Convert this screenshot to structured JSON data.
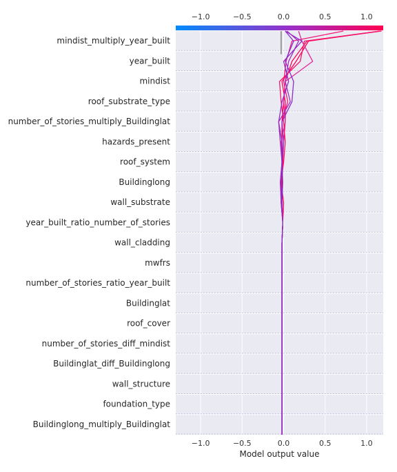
{
  "chart_data": {
    "type": "line",
    "subtype": "shap-decision-plot",
    "xlabel": "Model output value",
    "xlim": [
      -1.3,
      1.2
    ],
    "xticks": [
      "−1.0",
      "−0.5",
      "0.0",
      "0.5",
      "1.0"
    ],
    "xtick_values": [
      -1.0,
      -0.5,
      0.0,
      0.5,
      1.0
    ],
    "base_value": -0.03,
    "colorbar": {
      "low_color": "#008bfb",
      "mid_color": "#9a2fc8",
      "high_color": "#ff0051"
    },
    "grid": true,
    "features": [
      "mindist_multiply_year_built",
      "year_built",
      "mindist",
      "roof_substrate_type",
      "number_of_stories_multiply_Buildinglat",
      "hazards_present",
      "roof_system",
      "Buildinglong",
      "wall_substrate",
      "year_built_ratio_number_of_stories",
      "wall_cladding",
      "mwfrs",
      "number_of_stories_ratio_year_built",
      "Buildinglat",
      "roof_cover",
      "number_of_stories_diff_mindist",
      "Buildinglat_diff_Buildinglong",
      "wall_structure",
      "foundation_type",
      "Buildinglong_multiply_Buildinglat"
    ],
    "series": [
      {
        "values": [
          -0.02,
          -0.02,
          -0.02,
          -0.02,
          -0.02,
          -0.02,
          -0.02,
          -0.02,
          -0.02,
          -0.02,
          -0.02,
          -0.01,
          -0.03,
          -0.02,
          -0.01,
          -0.02,
          -0.02,
          0.05,
          0.0,
          0.03,
          0.1
        ],
        "output": 0.72,
        "color": "#f0197a"
      },
      {
        "values": [
          -0.02,
          -0.02,
          -0.02,
          -0.02,
          -0.02,
          -0.02,
          -0.02,
          -0.02,
          -0.02,
          -0.02,
          -0.02,
          -0.01,
          0.0,
          -0.03,
          -0.01,
          0.0,
          0.02,
          0.02,
          -0.02,
          0.15,
          0.3
        ],
        "output": 1.16,
        "color": "#ff0055"
      },
      {
        "values": [
          -0.02,
          -0.02,
          -0.02,
          -0.02,
          -0.02,
          -0.02,
          -0.02,
          -0.02,
          -0.02,
          -0.02,
          -0.02,
          -0.01,
          -0.03,
          -0.02,
          -0.01,
          -0.02,
          -0.02,
          0.0,
          0.02,
          0.1,
          0.28
        ],
        "output": 1.18,
        "color": "#ff0055"
      },
      {
        "values": [
          -0.02,
          -0.02,
          -0.02,
          -0.02,
          -0.02,
          -0.02,
          -0.02,
          -0.02,
          -0.02,
          -0.02,
          -0.02,
          -0.01,
          -0.02,
          -0.03,
          0.0,
          0.02,
          0.0,
          -0.03,
          -0.05,
          0.2,
          0.25
        ],
        "output": 1.16,
        "color": "#f2166d"
      },
      {
        "values": [
          -0.02,
          -0.02,
          -0.02,
          -0.02,
          -0.02,
          -0.02,
          -0.02,
          -0.02,
          -0.02,
          -0.02,
          -0.02,
          -0.01,
          -0.02,
          -0.04,
          -0.02,
          -0.03,
          0.02,
          0.0,
          0.02,
          0.35,
          0.22
        ],
        "output": 0.18,
        "color": "#e02a9a"
      },
      {
        "values": [
          -0.02,
          -0.02,
          -0.02,
          -0.02,
          -0.02,
          -0.02,
          -0.02,
          -0.02,
          -0.02,
          -0.02,
          -0.02,
          -0.01,
          -0.02,
          -0.03,
          -0.02,
          -0.02,
          -0.06,
          -0.02,
          0.06,
          0.0,
          0.22
        ],
        "output": 0.02,
        "color": "#9128c4"
      },
      {
        "values": [
          -0.02,
          -0.02,
          -0.02,
          -0.02,
          -0.02,
          -0.02,
          -0.02,
          -0.02,
          -0.02,
          -0.02,
          -0.02,
          -0.01,
          -0.03,
          -0.04,
          -0.02,
          -0.04,
          -0.06,
          0.08,
          0.02,
          0.06,
          0.18
        ],
        "output": 0.04,
        "color": "#a22bbc"
      },
      {
        "values": [
          -0.02,
          -0.02,
          -0.02,
          -0.02,
          -0.02,
          -0.02,
          -0.02,
          -0.02,
          -0.02,
          -0.02,
          -0.02,
          -0.01,
          -0.02,
          -0.01,
          -0.02,
          0.0,
          -0.02,
          0.1,
          0.12,
          0.02,
          0.12
        ],
        "output": 0.02,
        "color": "#8a2ccb"
      }
    ]
  }
}
